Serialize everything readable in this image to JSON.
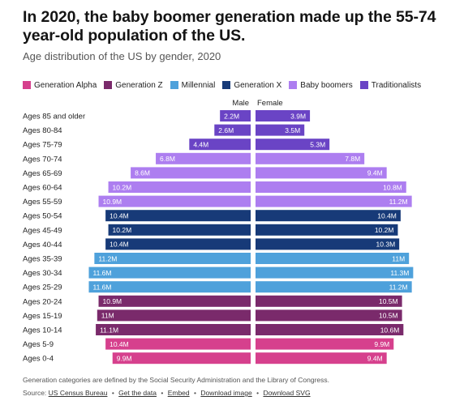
{
  "header": {
    "title": "In 2020, the baby boomer generation made up the 55-74 year-old population of the US.",
    "subtitle": "Age distribution of the US by gender, 2020"
  },
  "legend": [
    {
      "label": "Generation Alpha",
      "color": "#d6408d"
    },
    {
      "label": "Generation Z",
      "color": "#7a2a6b"
    },
    {
      "label": "Millennial",
      "color": "#4ea1db"
    },
    {
      "label": "Generation X",
      "color": "#173a78"
    },
    {
      "label": "Baby boomers",
      "color": "#ad7ef0"
    },
    {
      "label": "Traditionalists",
      "color": "#6a44c5"
    }
  ],
  "chart_data": {
    "type": "bar",
    "orientation": "horizontal-population-pyramid",
    "left_label": "Male",
    "right_label": "Female",
    "unit": "M",
    "categories": [
      "Ages 85 and older",
      "Ages 80-84",
      "Ages 75-79",
      "Ages 70-74",
      "Ages 65-69",
      "Ages 60-64",
      "Ages 55-59",
      "Ages 50-54",
      "Ages 45-49",
      "Ages 40-44",
      "Ages 35-39",
      "Ages 30-34",
      "Ages 25-29",
      "Ages 20-24",
      "Ages 15-19",
      "Ages 10-14",
      "Ages 5-9",
      "Ages 0-4"
    ],
    "generation": [
      "Traditionalists",
      "Traditionalists",
      "Traditionalists",
      "Baby boomers",
      "Baby boomers",
      "Baby boomers",
      "Baby boomers",
      "Generation X",
      "Generation X",
      "Generation X",
      "Millennial",
      "Millennial",
      "Millennial",
      "Generation Z",
      "Generation Z",
      "Generation Z",
      "Generation Alpha",
      "Generation Alpha"
    ],
    "series": [
      {
        "name": "Male",
        "values": [
          2.2,
          2.6,
          4.4,
          6.8,
          8.6,
          10.2,
          10.9,
          10.4,
          10.2,
          10.4,
          11.2,
          11.6,
          11.6,
          10.9,
          11,
          11.1,
          10.4,
          9.9
        ]
      },
      {
        "name": "Female",
        "values": [
          3.9,
          3.5,
          5.3,
          7.8,
          9.4,
          10.8,
          11.2,
          10.4,
          10.2,
          10.3,
          11,
          11.3,
          11.2,
          10.5,
          10.5,
          10.6,
          9.9,
          9.4
        ]
      }
    ],
    "value_labels": {
      "male": [
        "2.2M",
        "2.6M",
        "4.4M",
        "6.8M",
        "8.6M",
        "10.2M",
        "10.9M",
        "10.4M",
        "10.2M",
        "10.4M",
        "11.2M",
        "11.6M",
        "11.6M",
        "10.9M",
        "11M",
        "11.1M",
        "10.4M",
        "9.9M"
      ],
      "female": [
        "3.9M",
        "3.5M",
        "5.3M",
        "7.8M",
        "9.4M",
        "10.8M",
        "11.2M",
        "10.4M",
        "10.2M",
        "10.3M",
        "11M",
        "11.3M",
        "11.2M",
        "10.5M",
        "10.5M",
        "10.6M",
        "9.9M",
        "9.4M"
      ]
    },
    "grid": false,
    "legend_position": "top"
  },
  "footer": {
    "note": "Generation categories are defined by the Social Security Administration and the Library of Congress.",
    "source_prefix": "Source:",
    "source_link": "US Census Bureau",
    "get_data": "Get the data",
    "embed": "Embed",
    "download_image": "Download image",
    "download_svg": "Download SVG",
    "separator": "•"
  }
}
